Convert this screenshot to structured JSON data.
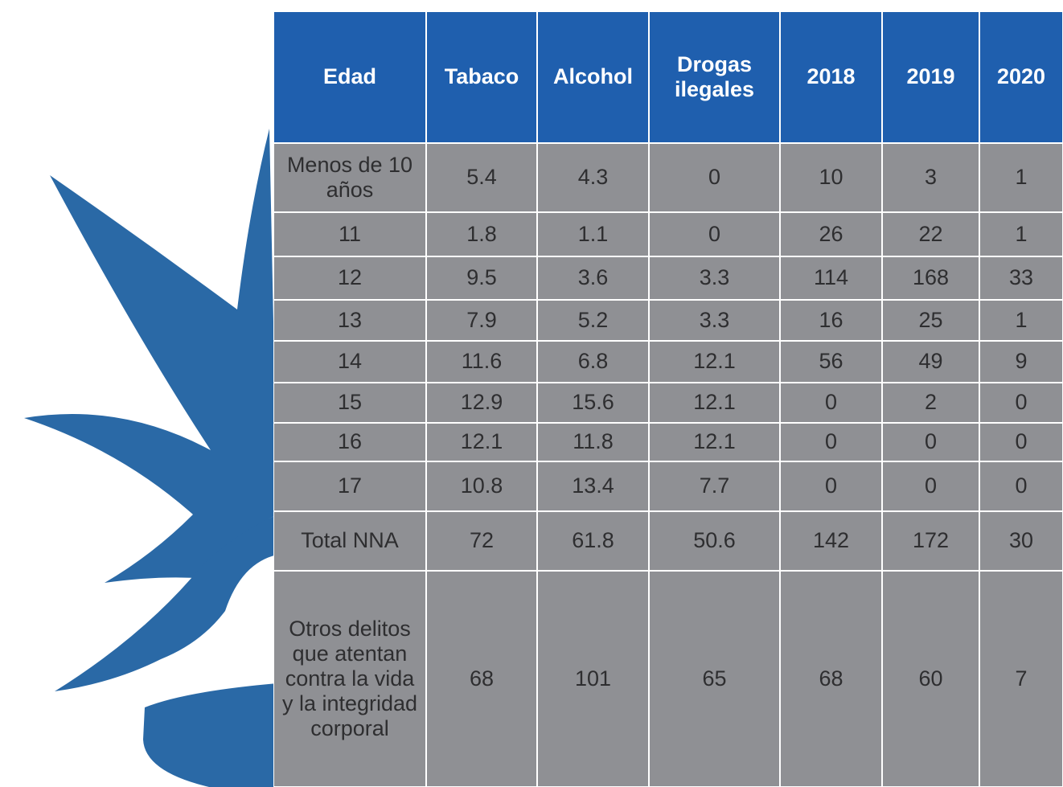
{
  "table": {
    "header": [
      "Edad",
      "Tabaco",
      "Alcohol",
      "Drogas ilegales",
      "2018",
      "2019",
      "2020"
    ],
    "rows": [
      [
        "Menos de 10 años",
        5.4,
        4.3,
        0,
        10,
        3,
        1
      ],
      [
        "11",
        1.8,
        1.1,
        0,
        26,
        22,
        1
      ],
      [
        "12",
        9.5,
        3.6,
        3.3,
        114,
        168,
        33
      ],
      [
        "13",
        7.9,
        5.2,
        3.3,
        16,
        25,
        1
      ],
      [
        "14",
        11.6,
        6.8,
        12.1,
        56,
        49,
        9
      ],
      [
        "15",
        12.9,
        15.6,
        12.1,
        0,
        2,
        0
      ],
      [
        "16",
        12.1,
        11.8,
        12.1,
        0,
        0,
        0
      ],
      [
        "17",
        10.8,
        13.4,
        7.7,
        0,
        0,
        0
      ],
      [
        "Total NNA",
        72,
        61.8,
        50.6,
        142,
        172,
        30
      ],
      [
        "Otros delitos que atentan contra la vida y la integridad corporal",
        68,
        101,
        65,
        68,
        60,
        7
      ]
    ]
  }
}
